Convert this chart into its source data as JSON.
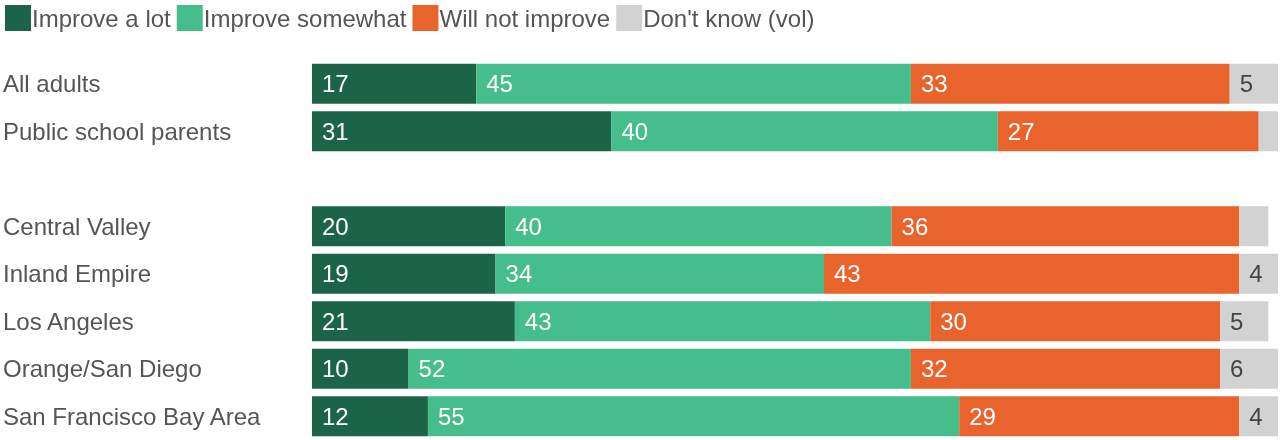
{
  "chart_data": {
    "type": "bar",
    "orientation": "horizontal",
    "stacked": true,
    "legend": "top left",
    "tick_labels": "y",
    "xlim": [
      0,
      100
    ],
    "categories": [
      "All adults",
      "Public school parents",
      null,
      "Central Valley",
      "Inland Empire",
      "Los Angeles",
      "Orange/San Diego",
      "San Francisco Bay Area"
    ],
    "series": [
      {
        "name": "Improve a lot",
        "color": "#1b6448",
        "values": [
          17,
          31,
          null,
          20,
          19,
          21,
          10,
          12
        ],
        "value_labels": [
          "17",
          "31",
          null,
          "20",
          "19",
          "21",
          "10",
          "12"
        ]
      },
      {
        "name": "Improve somewhat",
        "color": "#45be8b",
        "values": [
          45,
          40,
          null,
          40,
          34,
          43,
          52,
          55
        ],
        "value_labels": [
          "45",
          "40",
          null,
          "40",
          "34",
          "43",
          "52",
          "55"
        ]
      },
      {
        "name": "Will not improve",
        "color": "#e9632d",
        "values": [
          33,
          27,
          null,
          36,
          43,
          30,
          32,
          29
        ],
        "value_labels": [
          "33",
          "27",
          null,
          "36",
          "43",
          "30",
          "32",
          "29"
        ]
      },
      {
        "name": "Don't know (vol)",
        "color": "#d2d2d2",
        "values": [
          5,
          2,
          null,
          3,
          4,
          5,
          6,
          4
        ],
        "value_labels": [
          "5",
          null,
          null,
          null,
          "4",
          "5",
          "6",
          "4"
        ]
      }
    ]
  }
}
